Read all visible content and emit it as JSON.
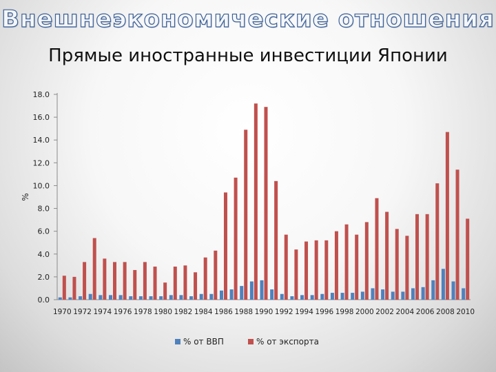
{
  "slide_heading": "Внешнеэкономические отношения",
  "chart_data": {
    "type": "bar",
    "title": "Прямые иностранные инвестиции Японии",
    "ylabel": "%",
    "xlabel": "",
    "ylim": [
      0,
      18
    ],
    "yticks": [
      "0.0",
      "2.0",
      "4.0",
      "6.0",
      "8.0",
      "10.0",
      "12.0",
      "14.0",
      "16.0",
      "18.0"
    ],
    "grid": false,
    "legend": "bottom",
    "categories": [
      "1970",
      "1971",
      "1972",
      "1973",
      "1974",
      "1975",
      "1976",
      "1977",
      "1978",
      "1979",
      "1980",
      "1981",
      "1982",
      "1983",
      "1984",
      "1985",
      "1986",
      "1987",
      "1988",
      "1989",
      "1990",
      "1991",
      "1992",
      "1993",
      "1994",
      "1995",
      "1996",
      "1997",
      "1998",
      "1999",
      "2000",
      "2001",
      "2002",
      "2003",
      "2004",
      "2005",
      "2006",
      "2007",
      "2008",
      "2009",
      "2010"
    ],
    "xtick_labels": [
      "1970",
      "1972",
      "1974",
      "1976",
      "1978",
      "1980",
      "1982",
      "1984",
      "1986",
      "1988",
      "1990",
      "1992",
      "1994",
      "1996",
      "1998",
      "2000",
      "2002",
      "2004",
      "2006",
      "2008",
      "2010"
    ],
    "series": [
      {
        "name": "% от ВВП",
        "color": "#4f81bd",
        "values": [
          0.2,
          0.2,
          0.3,
          0.5,
          0.4,
          0.4,
          0.4,
          0.3,
          0.3,
          0.3,
          0.3,
          0.4,
          0.4,
          0.3,
          0.5,
          0.5,
          0.8,
          0.9,
          1.2,
          1.6,
          1.7,
          0.9,
          0.5,
          0.3,
          0.4,
          0.4,
          0.5,
          0.6,
          0.6,
          0.6,
          0.7,
          1.0,
          0.9,
          0.7,
          0.7,
          1.0,
          1.1,
          1.7,
          2.7,
          1.6,
          1.0
        ]
      },
      {
        "name": "% от экспорта",
        "color": "#c0504d",
        "values": [
          2.1,
          2.0,
          3.3,
          5.4,
          3.6,
          3.3,
          3.3,
          2.6,
          3.3,
          2.9,
          1.5,
          2.9,
          3.0,
          2.4,
          3.7,
          4.3,
          9.4,
          10.7,
          14.9,
          17.2,
          16.9,
          10.4,
          5.7,
          4.4,
          5.1,
          5.2,
          5.2,
          6.0,
          6.6,
          5.7,
          6.8,
          8.9,
          7.7,
          6.2,
          5.6,
          7.5,
          7.5,
          10.2,
          14.7,
          11.4,
          7.1
        ]
      }
    ]
  }
}
